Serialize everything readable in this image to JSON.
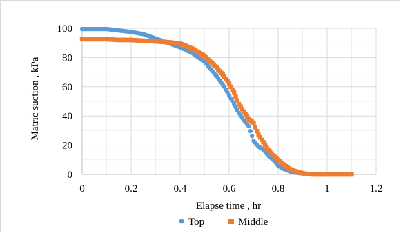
{
  "chart_data": {
    "type": "scatter",
    "title": "",
    "xlabel": "Elapse time , hr",
    "ylabel": "Matric suction , kPa",
    "xlim": [
      0,
      1.2
    ],
    "ylim": [
      0,
      100
    ],
    "x_ticks": [
      "0",
      "0.2",
      "0.4",
      "0.6",
      "0.8",
      "1",
      "1.2"
    ],
    "y_ticks": [
      "0",
      "20",
      "40",
      "60",
      "80",
      "100"
    ],
    "grid": "on",
    "legend_position": "bottom",
    "series": [
      {
        "name": "Top",
        "color": "#5b9bd5",
        "marker": "circle",
        "x": [
          0,
          0.05,
          0.1,
          0.15,
          0.2,
          0.25,
          0.3,
          0.35,
          0.4,
          0.45,
          0.5,
          0.55,
          0.58,
          0.6,
          0.62,
          0.64,
          0.66,
          0.68,
          0.7,
          0.72,
          0.74,
          0.76,
          0.78,
          0.8,
          0.82,
          0.85,
          0.88,
          0.91,
          0.94,
          0.97,
          1.0,
          1.05,
          1.1
        ],
        "y": [
          99.5,
          99.5,
          99.5,
          98.5,
          97.5,
          96,
          93,
          90,
          87,
          83,
          77,
          67,
          60,
          54,
          48,
          42,
          37,
          33,
          23,
          19,
          17,
          13,
          10,
          6,
          4,
          2,
          1,
          0.5,
          0,
          0,
          0,
          0,
          0
        ]
      },
      {
        "name": "Middle",
        "color": "#ed7d31",
        "marker": "square",
        "x": [
          0,
          0.05,
          0.1,
          0.15,
          0.2,
          0.25,
          0.3,
          0.35,
          0.4,
          0.45,
          0.5,
          0.55,
          0.58,
          0.6,
          0.62,
          0.64,
          0.66,
          0.68,
          0.7,
          0.72,
          0.74,
          0.76,
          0.78,
          0.8,
          0.82,
          0.85,
          0.88,
          0.91,
          0.94,
          0.97,
          1.0,
          1.05,
          1.1
        ],
        "y": [
          92.5,
          92.5,
          92.5,
          92,
          92,
          91.5,
          91,
          90.5,
          89.5,
          86,
          81,
          73,
          67,
          62,
          56,
          48,
          43,
          38,
          35,
          27,
          22,
          17,
          13,
          10,
          7,
          3.5,
          1.5,
          0.5,
          0,
          0,
          0,
          0,
          0
        ]
      }
    ]
  }
}
